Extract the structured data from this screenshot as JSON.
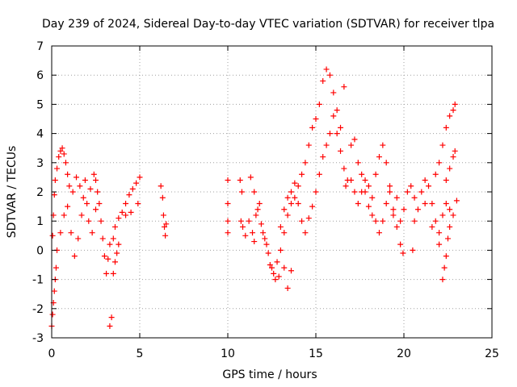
{
  "chart_data": {
    "type": "scatter",
    "title": "Day 239 of 2024, Sidereal Day-to-day VTEC variation (SDTVAR) for receiver tlpa",
    "xlabel": "GPS time / hours",
    "ylabel": "SDTVAR / TECUs",
    "xlim": [
      0,
      25
    ],
    "ylim": [
      -3,
      7
    ],
    "xticks": [
      "0",
      "5",
      "10",
      "15",
      "20",
      "25"
    ],
    "yticks": [
      "-3",
      "-2",
      "-1",
      "0",
      "1",
      "2",
      "3",
      "4",
      "5",
      "6",
      "7"
    ],
    "grid": true,
    "marker": "+",
    "color": "#ff0000",
    "series": [
      {
        "name": "SDTVAR",
        "points": [
          [
            0.0,
            -2.6
          ],
          [
            0.05,
            -2.2
          ],
          [
            0.1,
            -1.8
          ],
          [
            0.15,
            -1.4
          ],
          [
            0.2,
            -1.0
          ],
          [
            0.25,
            -0.6
          ],
          [
            0.05,
            0.5
          ],
          [
            0.1,
            1.2
          ],
          [
            0.15,
            1.9
          ],
          [
            0.2,
            2.4
          ],
          [
            0.3,
            2.8
          ],
          [
            0.4,
            3.2
          ],
          [
            0.5,
            3.4
          ],
          [
            0.6,
            3.5
          ],
          [
            0.7,
            3.3
          ],
          [
            0.8,
            3.0
          ],
          [
            0.9,
            2.6
          ],
          [
            1.0,
            2.2
          ],
          [
            1.2,
            2.0
          ],
          [
            1.4,
            2.5
          ],
          [
            1.6,
            2.2
          ],
          [
            1.8,
            1.8
          ],
          [
            2.0,
            1.6
          ],
          [
            2.2,
            2.1
          ],
          [
            2.4,
            2.6
          ],
          [
            2.5,
            2.4
          ],
          [
            2.6,
            2.0
          ],
          [
            2.7,
            1.6
          ],
          [
            2.8,
            1.0
          ],
          [
            2.9,
            0.4
          ],
          [
            3.0,
            -0.2
          ],
          [
            3.1,
            -0.8
          ],
          [
            3.2,
            -0.3
          ],
          [
            3.3,
            0.2
          ],
          [
            0.3,
            0.0
          ],
          [
            0.5,
            0.6
          ],
          [
            0.7,
            1.2
          ],
          [
            0.9,
            1.5
          ],
          [
            1.1,
            0.6
          ],
          [
            1.3,
            -0.2
          ],
          [
            1.5,
            0.4
          ],
          [
            1.7,
            1.2
          ],
          [
            1.9,
            2.4
          ],
          [
            2.1,
            1.0
          ],
          [
            2.3,
            0.6
          ],
          [
            2.5,
            1.4
          ],
          [
            3.3,
            -2.6
          ],
          [
            3.4,
            -2.3
          ],
          [
            3.5,
            -0.8
          ],
          [
            3.6,
            -0.4
          ],
          [
            3.7,
            -0.1
          ],
          [
            3.8,
            0.2
          ],
          [
            3.5,
            0.4
          ],
          [
            3.6,
            0.8
          ],
          [
            3.8,
            1.1
          ],
          [
            4.0,
            1.3
          ],
          [
            4.2,
            1.6
          ],
          [
            4.4,
            1.9
          ],
          [
            4.6,
            2.1
          ],
          [
            4.8,
            2.3
          ],
          [
            5.0,
            2.5
          ],
          [
            4.9,
            1.6
          ],
          [
            4.5,
            1.3
          ],
          [
            4.2,
            1.2
          ],
          [
            6.2,
            2.2
          ],
          [
            6.3,
            1.8
          ],
          [
            6.35,
            1.2
          ],
          [
            6.4,
            0.8
          ],
          [
            6.45,
            0.5
          ],
          [
            6.5,
            0.9
          ],
          [
            10.0,
            2.4
          ],
          [
            10.0,
            1.6
          ],
          [
            10.0,
            1.0
          ],
          [
            10.0,
            0.6
          ],
          [
            10.7,
            2.4
          ],
          [
            10.8,
            2.0
          ],
          [
            10.75,
            1.0
          ],
          [
            10.85,
            0.8
          ],
          [
            11.0,
            0.5
          ],
          [
            11.2,
            1.0
          ],
          [
            11.4,
            0.6
          ],
          [
            11.5,
            0.3
          ],
          [
            11.6,
            1.2
          ],
          [
            11.8,
            1.6
          ],
          [
            12.0,
            0.6
          ],
          [
            12.2,
            0.2
          ],
          [
            12.4,
            -0.5
          ],
          [
            12.6,
            -0.8
          ],
          [
            12.8,
            -0.4
          ],
          [
            13.0,
            0.0
          ],
          [
            13.2,
            -0.6
          ],
          [
            13.4,
            -1.3
          ],
          [
            13.6,
            -0.7
          ],
          [
            11.3,
            2.5
          ],
          [
            11.5,
            2.0
          ],
          [
            11.7,
            1.4
          ],
          [
            11.9,
            0.9
          ],
          [
            12.1,
            0.4
          ],
          [
            12.3,
            -0.1
          ],
          [
            12.5,
            -0.6
          ],
          [
            12.7,
            -1.0
          ],
          [
            12.9,
            -0.9
          ],
          [
            13.2,
            0.6
          ],
          [
            13.4,
            1.2
          ],
          [
            13.6,
            1.6
          ],
          [
            13.8,
            1.8
          ],
          [
            14.0,
            2.2
          ],
          [
            14.2,
            2.6
          ],
          [
            14.4,
            3.0
          ],
          [
            14.6,
            3.6
          ],
          [
            14.8,
            4.2
          ],
          [
            15.0,
            4.5
          ],
          [
            15.2,
            5.0
          ],
          [
            15.4,
            5.8
          ],
          [
            15.6,
            6.2
          ],
          [
            15.8,
            6.0
          ],
          [
            16.0,
            5.4
          ],
          [
            16.2,
            4.8
          ],
          [
            16.4,
            4.2
          ],
          [
            16.6,
            5.6
          ],
          [
            13.0,
            0.8
          ],
          [
            13.2,
            1.4
          ],
          [
            13.4,
            1.8
          ],
          [
            13.6,
            2.0
          ],
          [
            13.8,
            2.3
          ],
          [
            14.0,
            1.6
          ],
          [
            14.2,
            1.0
          ],
          [
            14.4,
            0.6
          ],
          [
            14.6,
            1.1
          ],
          [
            14.8,
            1.5
          ],
          [
            15.0,
            2.0
          ],
          [
            15.2,
            2.6
          ],
          [
            15.4,
            3.2
          ],
          [
            15.6,
            3.6
          ],
          [
            15.8,
            4.0
          ],
          [
            16.0,
            4.6
          ],
          [
            16.2,
            4.0
          ],
          [
            16.4,
            3.4
          ],
          [
            16.6,
            2.8
          ],
          [
            16.8,
            2.4
          ],
          [
            17.0,
            3.6
          ],
          [
            17.2,
            3.8
          ],
          [
            17.4,
            3.0
          ],
          [
            16.7,
            2.2
          ],
          [
            17.0,
            2.4
          ],
          [
            17.2,
            2.0
          ],
          [
            17.4,
            1.6
          ],
          [
            17.6,
            2.0
          ],
          [
            17.8,
            2.4
          ],
          [
            18.0,
            2.2
          ],
          [
            18.2,
            1.8
          ],
          [
            18.4,
            2.6
          ],
          [
            18.6,
            3.2
          ],
          [
            18.8,
            3.6
          ],
          [
            19.0,
            3.0
          ],
          [
            19.2,
            2.2
          ],
          [
            19.4,
            1.4
          ],
          [
            19.6,
            0.8
          ],
          [
            19.8,
            0.2
          ],
          [
            19.95,
            -0.1
          ],
          [
            17.6,
            2.6
          ],
          [
            17.8,
            2.0
          ],
          [
            18.0,
            1.5
          ],
          [
            18.2,
            1.2
          ],
          [
            18.4,
            1.0
          ],
          [
            18.6,
            0.6
          ],
          [
            18.8,
            1.0
          ],
          [
            19.0,
            1.6
          ],
          [
            19.2,
            2.0
          ],
          [
            19.4,
            1.2
          ],
          [
            19.6,
            1.8
          ],
          [
            19.8,
            1.0
          ],
          [
            20.0,
            1.4
          ],
          [
            20.2,
            2.0
          ],
          [
            20.4,
            2.2
          ],
          [
            20.6,
            1.8
          ],
          [
            20.8,
            1.4
          ],
          [
            21.0,
            2.0
          ],
          [
            21.2,
            2.4
          ],
          [
            21.4,
            2.2
          ],
          [
            21.6,
            1.6
          ],
          [
            21.8,
            1.0
          ],
          [
            22.0,
            0.6
          ],
          [
            22.2,
            1.2
          ],
          [
            22.4,
            1.6
          ],
          [
            22.6,
            1.4
          ],
          [
            22.8,
            1.2
          ],
          [
            23.0,
            1.7
          ],
          [
            20.5,
            0.0
          ],
          [
            20.6,
            1.0
          ],
          [
            21.2,
            1.6
          ],
          [
            21.6,
            0.8
          ],
          [
            22.0,
            0.2
          ],
          [
            21.8,
            2.6
          ],
          [
            22.0,
            3.0
          ],
          [
            22.2,
            3.6
          ],
          [
            22.4,
            4.2
          ],
          [
            22.6,
            4.6
          ],
          [
            22.8,
            4.8
          ],
          [
            22.9,
            5.0
          ],
          [
            22.8,
            3.2
          ],
          [
            22.9,
            3.4
          ],
          [
            22.6,
            2.8
          ],
          [
            22.4,
            2.4
          ],
          [
            22.2,
            -1.0
          ],
          [
            22.3,
            -0.6
          ],
          [
            22.4,
            -0.2
          ],
          [
            22.5,
            0.4
          ],
          [
            22.6,
            0.8
          ]
        ]
      }
    ]
  }
}
